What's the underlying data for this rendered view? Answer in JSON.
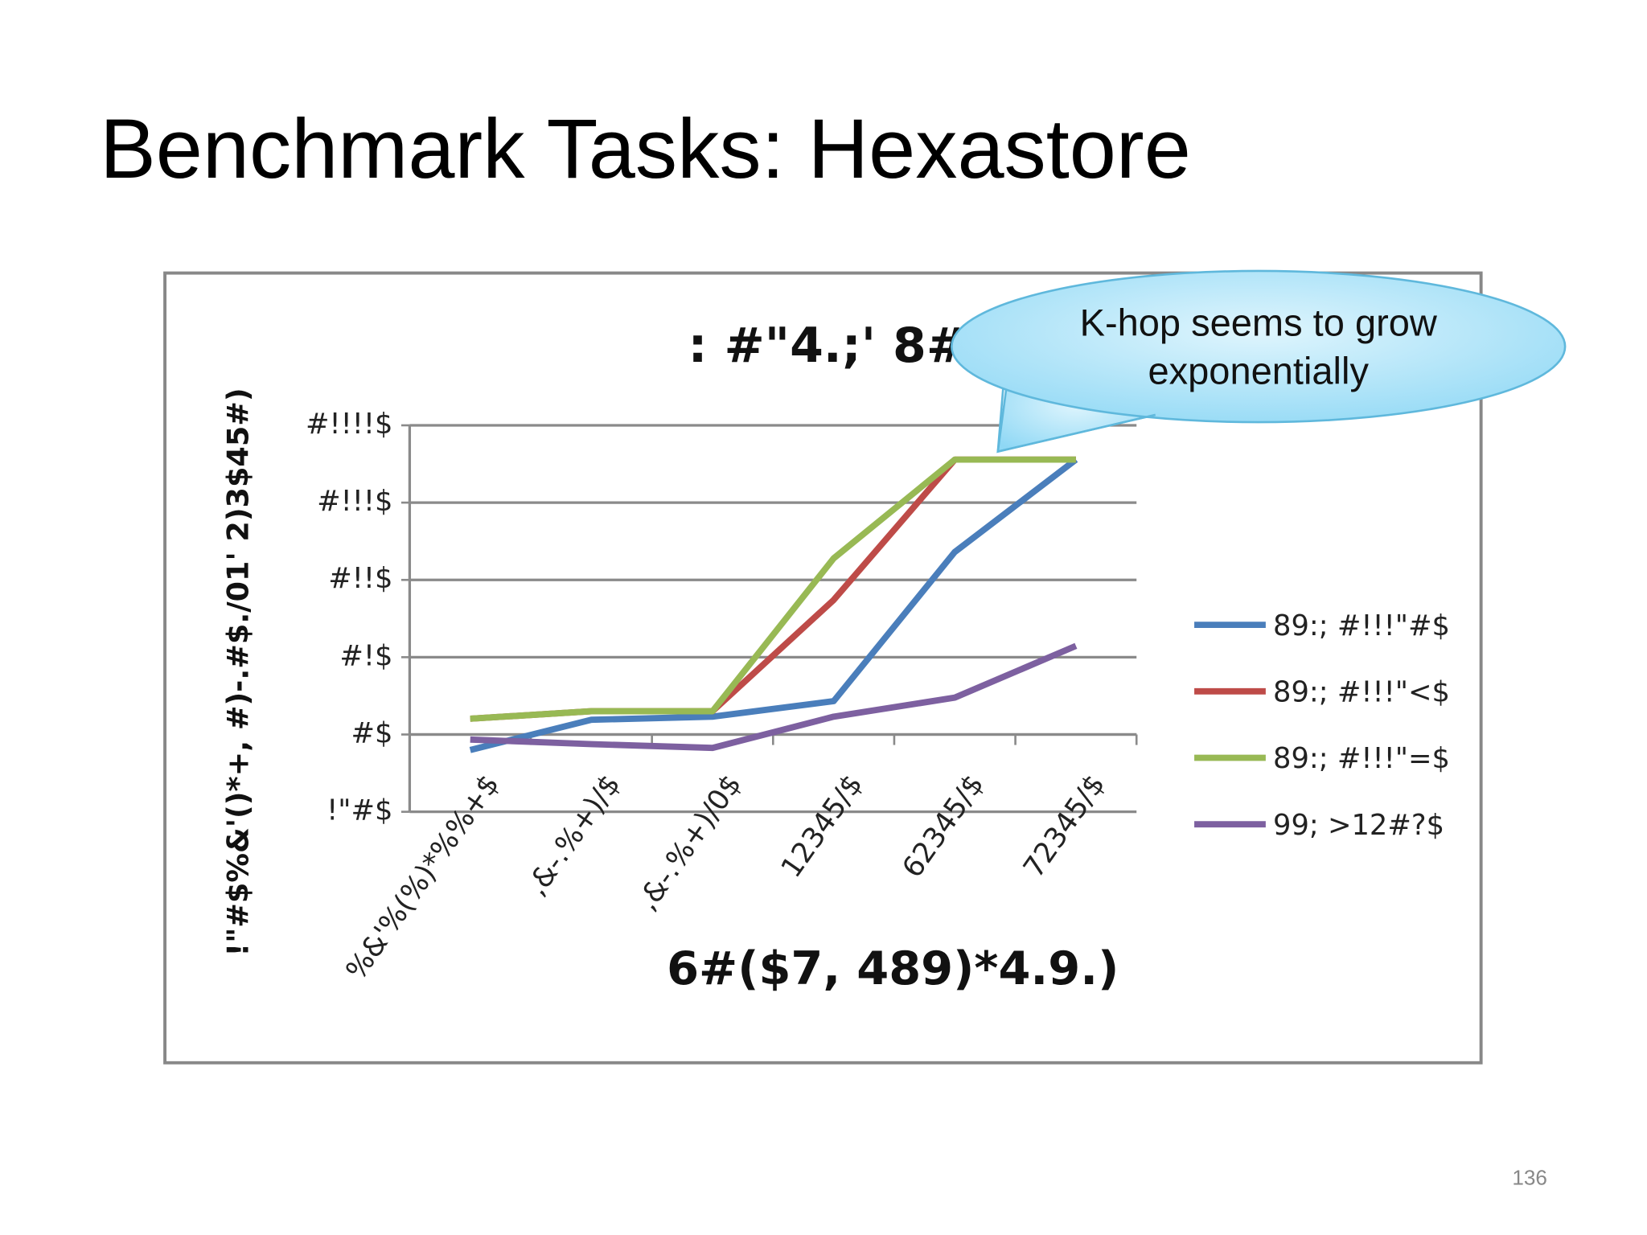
{
  "slide": {
    "title": "Benchmark Tasks: Hexastore",
    "page_number": "136"
  },
  "chart_data": {
    "type": "line",
    "title": ": #\"4.;' 8#",
    "x_label": "6#($7, 489)*4.9.)",
    "y_label": "!\"#$%&'()*+, #)-.#$./01' 2)3$45#)",
    "annotation": [
      "K-hop seems to grow",
      "exponentially"
    ],
    "categories": [
      "%&'%(%)*%%+$",
      ",&-.%+)/$",
      ",&-.%+)/0$",
      "12345/$",
      "62345/$",
      "72345/$"
    ],
    "series": [
      {
        "name": "89:; #!!!\"#$",
        "color": "#4a7ebb",
        "values": [
          0.63,
          1.55,
          1.7,
          2.7,
          230,
          3600
        ]
      },
      {
        "name": "89:; #!!!\"<$",
        "color": "#be4b48",
        "values": [
          1.6,
          2.0,
          2.0,
          55,
          3600,
          3600
        ]
      },
      {
        "name": "89:; #!!!\"=$",
        "color": "#98b954",
        "values": [
          1.6,
          2.0,
          2.0,
          190,
          3600,
          3600
        ]
      },
      {
        "name": "99; >12#?$",
        "color": "#7d60a0",
        "values": [
          0.86,
          0.75,
          0.67,
          1.7,
          3.0,
          14
        ]
      }
    ],
    "log_scale": true,
    "ylim": [
      0.1,
      10000
    ],
    "yticks": [
      {
        "value": 0.1,
        "label": "!\"#$"
      },
      {
        "value": 1,
        "label": "#$"
      },
      {
        "value": 10,
        "label": "#!$"
      },
      {
        "value": 100,
        "label": "#!!$"
      },
      {
        "value": 1000,
        "label": "#!!!$"
      },
      {
        "value": 10000,
        "label": "#!!!!$"
      }
    ],
    "grid": true,
    "legend": "right"
  }
}
